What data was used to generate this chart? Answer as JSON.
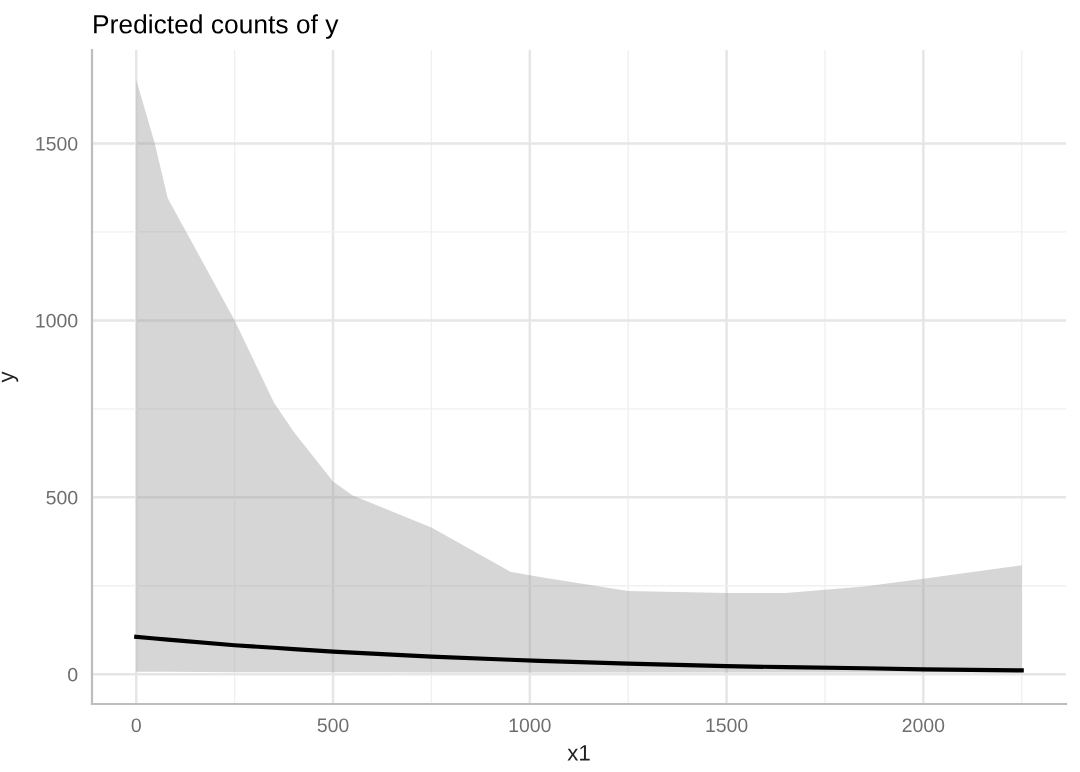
{
  "chart_data": {
    "type": "line",
    "title": "Predicted counts of y",
    "xlabel": "x1",
    "ylabel": "y",
    "x": [
      0,
      47,
      80,
      250,
      350,
      400,
      500,
      550,
      750,
      950,
      1025,
      1250,
      1500,
      1650,
      1850,
      2000,
      2250
    ],
    "series": [
      {
        "color": "#000000",
        "values": [
          106,
          101,
          98,
          82,
          75,
          71,
          64,
          61,
          50,
          41,
          38,
          30,
          23,
          20,
          17,
          14,
          11
        ],
        "lower": [
          7,
          7,
          7,
          6,
          6,
          6,
          6,
          6,
          5,
          5,
          5,
          5,
          5,
          5,
          5,
          5,
          5
        ],
        "upper": [
          1680,
          1500,
          1345,
          1000,
          767,
          685,
          545,
          505,
          415,
          290,
          275,
          235,
          230,
          230,
          248,
          270,
          308
        ]
      }
    ],
    "xlim": [
      -112.5,
      2362.5
    ],
    "ylim": [
      -84,
      1764
    ],
    "xticks": [
      0,
      {
        "value": 250,
        "label": null
      },
      500,
      {
        "value": 750,
        "label": null
      },
      1000,
      {
        "value": 1250,
        "label": null
      },
      1500,
      {
        "value": 1750,
        "label": null
      },
      2000,
      {
        "value": 2250,
        "label": null
      }
    ],
    "yticks": [
      0,
      {
        "value": 250,
        "label": null
      },
      500,
      {
        "value": 750,
        "label": null
      },
      1000,
      {
        "value": 1250,
        "label": null
      },
      1500
    ],
    "grid": true,
    "line_style": "solid"
  }
}
